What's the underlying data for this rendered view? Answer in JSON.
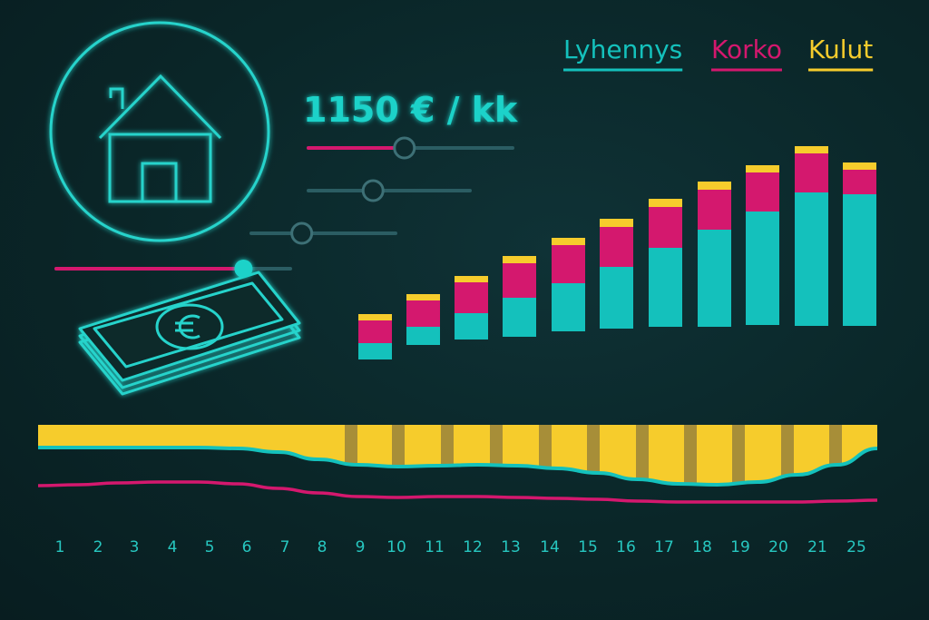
{
  "payment": {
    "amount_label": "1150 € / kk"
  },
  "colors": {
    "lyhennys": "#14c1bc",
    "korko": "#d4186e",
    "kulut": "#f6cc2c",
    "slider_track": "#2b5d63"
  },
  "icons": [
    "house-icon",
    "money-stack-icon",
    "euro-icon"
  ],
  "sliders": [
    {
      "name": "slider-1",
      "value": 0.47,
      "color": "#d4186e"
    },
    {
      "name": "slider-2",
      "value": 0.4,
      "color": "#2b5d63"
    },
    {
      "name": "slider-3",
      "value": 0.35,
      "color": "#2b5d63"
    },
    {
      "name": "slider-4",
      "value": 0.8,
      "color": "#d4186e"
    }
  ],
  "chart_data": [
    {
      "type": "bar",
      "stacked": true,
      "series": [
        {
          "name": "Lyhennys",
          "color": "#14c1bc",
          "values": [
            18,
            20,
            29,
            43,
            53,
            68,
            87,
            107,
            125,
            147,
            145
          ]
        },
        {
          "name": "Korko",
          "color": "#d4186e",
          "values": [
            25,
            29,
            34,
            38,
            42,
            44,
            45,
            44,
            43,
            43,
            27
          ]
        },
        {
          "name": "Kulut",
          "color": "#f6cc2c",
          "values": [
            7,
            7,
            7,
            8,
            8,
            9,
            9,
            9,
            8,
            8,
            8
          ]
        }
      ],
      "legend": {
        "placement": "top-right",
        "entries": [
          "Lyhennys",
          "Korko",
          "Kulut"
        ]
      },
      "grid": false
    },
    {
      "type": "area",
      "x": [
        "1",
        "2",
        "3",
        "4",
        "5",
        "6",
        "7",
        "8",
        "9",
        "10",
        "11",
        "12",
        "13",
        "14",
        "15",
        "16",
        "17",
        "18",
        "19",
        "20",
        "21",
        "25"
      ],
      "series": [
        {
          "name": "Kulut",
          "color": "#f6cc2c",
          "values": [
            25,
            25,
            25,
            25,
            25,
            26,
            30,
            38,
            44,
            46,
            45,
            44,
            45,
            48,
            53,
            60,
            65,
            66,
            63,
            55,
            44,
            26
          ]
        },
        {
          "name": "Korko",
          "color": "#d4186e",
          "values": [
            67,
            66,
            64,
            63,
            63,
            65,
            70,
            75,
            79,
            80,
            79,
            79,
            80,
            81,
            82,
            84,
            85,
            85,
            85,
            85,
            84,
            83
          ]
        }
      ],
      "grid": false
    }
  ]
}
